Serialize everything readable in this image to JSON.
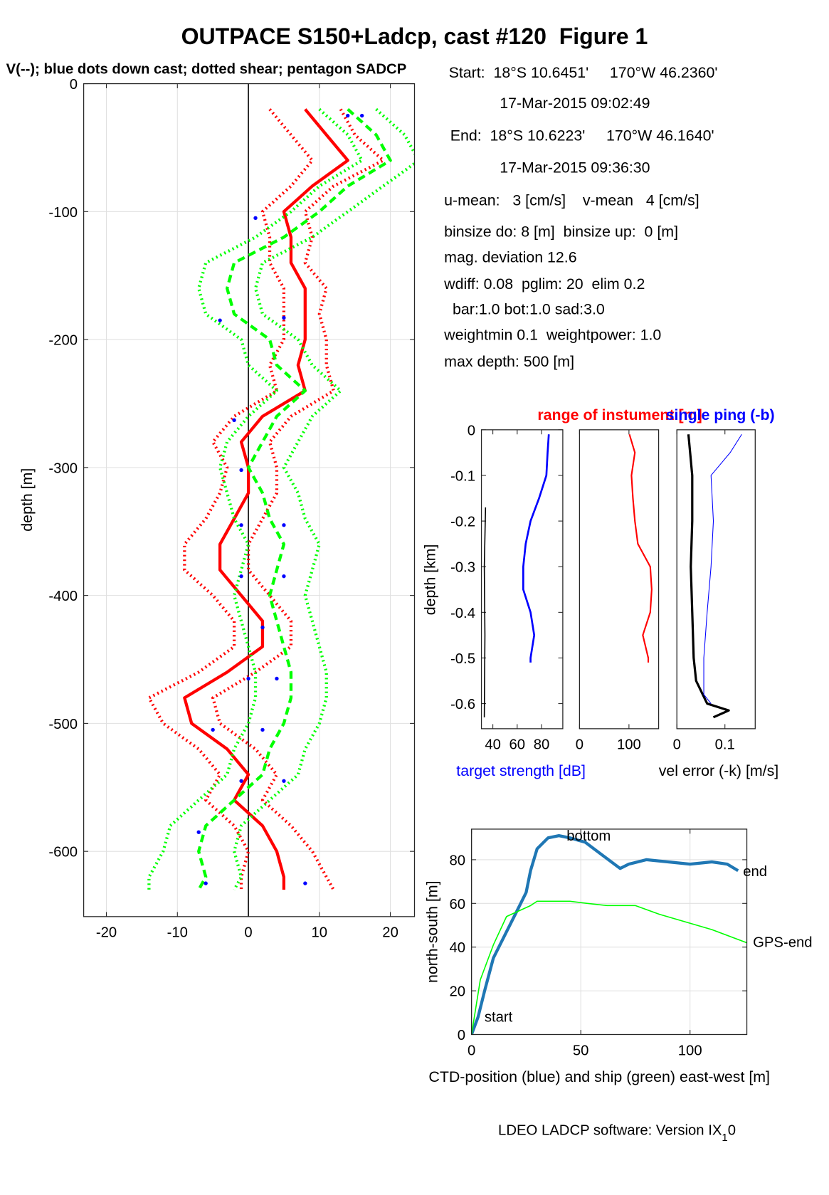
{
  "title": "OUTPACE S150+Ladcp, cast #120  Figure 1",
  "subtitle": "V(--); blue dots down cast; dotted shear; pentagon SADCP",
  "info": [
    "Start:  18°S 10.6451'     170°W 46.2360'",
    "17-Mar-2015 09:02:49",
    "End:  18°S 10.6223'     170°W 46.1640'",
    "17-Mar-2015 09:36:30",
    "u-mean:   3 [cm/s]    v-mean   4 [cm/s]",
    "binsize do: 8 [m]  binsize up:  0 [m]",
    "mag. deviation 12.6",
    "wdiff: 0.08  pglim: 20  elim 0.2",
    "  bar:1.0 bot:1.0 sad:3.0",
    "weightmin 0.1  weightpower: 1.0",
    "max depth: 500 [m]"
  ],
  "footer": {
    "text": "LDEO LADCP software: Version IX",
    "subscript": "1",
    "suffix": "0"
  },
  "chart_data": [
    {
      "type": "profile",
      "ylabel": "depth [m]",
      "xlim": [
        -23.2,
        23.4
      ],
      "ylim": [
        -651,
        0
      ],
      "xticks": [
        -20,
        -10,
        0,
        10,
        20
      ],
      "yticks": [
        -600,
        -500,
        -400,
        -300,
        -200,
        -100,
        0
      ],
      "grid": true,
      "y": [
        -20,
        -40,
        -60,
        -80,
        -100,
        -120,
        -140,
        -160,
        -180,
        -200,
        -220,
        -240,
        -260,
        -280,
        -300,
        -320,
        -340,
        -360,
        -380,
        -400,
        -420,
        -440,
        -460,
        -480,
        -500,
        -520,
        -540,
        -560,
        -580,
        -600,
        -620,
        -630
      ],
      "series": [
        {
          "color": "#ff0000",
          "style": "solid",
          "width": 4,
          "values": [
            8,
            11,
            14,
            9,
            5,
            6,
            6,
            8,
            8,
            8,
            7,
            8,
            2,
            -1,
            0,
            0,
            -2,
            -4,
            -4,
            -1,
            2,
            2,
            -3,
            -9,
            -8,
            -3,
            0,
            -2,
            2,
            4,
            5,
            5
          ]
        },
        {
          "color": "#ff0000",
          "style": "dotted",
          "width": 4,
          "values": [
            13,
            15,
            19,
            12,
            8,
            9,
            8,
            11,
            10,
            11,
            11,
            12,
            6,
            3,
            4,
            4,
            2,
            0,
            0,
            3,
            6,
            6,
            1,
            -5,
            -4,
            1,
            4,
            2,
            6,
            9,
            11,
            12
          ]
        },
        {
          "color": "#ff0000",
          "style": "dotted",
          "width": 4,
          "values": [
            3,
            6,
            9,
            6,
            2,
            3,
            3,
            5,
            5,
            5,
            3,
            4,
            -2,
            -5,
            -3,
            -4,
            -6,
            -9,
            -9,
            -5,
            -2,
            -2,
            -7,
            -14,
            -12,
            -7,
            -4,
            -6,
            -2,
            0,
            -1,
            -1
          ]
        },
        {
          "color": "#00ff00",
          "style": "dashed",
          "width": 4,
          "values": [
            14,
            18,
            20,
            14,
            10,
            5,
            -2,
            -3,
            -2,
            3,
            4,
            8,
            4,
            2,
            0,
            2,
            3,
            5,
            4,
            3,
            4,
            5,
            6,
            6,
            5,
            3,
            2,
            -2,
            -6,
            -7,
            -6,
            -7
          ]
        },
        {
          "color": "#00ff00",
          "style": "dotted",
          "width": 4,
          "values": [
            18,
            22,
            24,
            19,
            14,
            9,
            2,
            1,
            2,
            7,
            9,
            13,
            9,
            7,
            5,
            7,
            8,
            10,
            9,
            8,
            9,
            10,
            11,
            11,
            10,
            8,
            7,
            3,
            -1,
            -2,
            -1,
            -2
          ]
        },
        {
          "color": "#00ff00",
          "style": "dotted",
          "width": 4,
          "values": [
            10,
            14,
            16,
            10,
            6,
            1,
            -6,
            -7,
            -6,
            -1,
            0,
            4,
            0,
            -3,
            -4,
            -3,
            -2,
            0,
            -1,
            -2,
            -1,
            0,
            1,
            1,
            0,
            -2,
            -3,
            -7,
            -11,
            -12,
            -14,
            -14
          ]
        },
        {
          "color": "#0000ff",
          "style": "dots",
          "width": 4,
          "y": [
            -25,
            -25,
            -105,
            -185,
            -183,
            -263,
            -302,
            -345,
            -345,
            -385,
            -385,
            -425,
            -465,
            -465,
            -505,
            -505,
            -545,
            -545,
            -585,
            -625,
            -625
          ],
          "values": [
            14,
            16,
            1,
            -4,
            5,
            -2,
            -1,
            -1,
            5,
            -1,
            5,
            2,
            0,
            4,
            -5,
            2,
            -1,
            5,
            -7,
            -6,
            8
          ]
        }
      ]
    },
    {
      "type": "profile",
      "ylabel": "depth [km]",
      "xlabel": "target strength [dB]",
      "xlabel_color": "#0000ff",
      "xlim": [
        30.6,
        97.5
      ],
      "ylim": [
        -0.655,
        0
      ],
      "xticks": [
        40,
        60,
        80
      ],
      "yticks": [
        -0.6,
        -0.5,
        -0.4,
        -0.3,
        -0.2,
        -0.1,
        0
      ],
      "grid": false,
      "series": [
        {
          "color": "#0000ff",
          "style": "solid",
          "width": 2.5,
          "y": [
            -0.01,
            -0.05,
            -0.1,
            -0.15,
            -0.2,
            -0.25,
            -0.3,
            -0.35,
            -0.4,
            -0.45,
            -0.5,
            -0.51
          ],
          "values": [
            86,
            85,
            84,
            78,
            71,
            67,
            65,
            65,
            71,
            74,
            71,
            71
          ]
        },
        {
          "color": "#000000",
          "style": "solid",
          "width": 1.5,
          "y": [
            -0.17,
            -0.3,
            -0.45,
            -0.63
          ],
          "values": [
            34,
            33,
            33.5,
            33
          ]
        }
      ]
    },
    {
      "type": "profile",
      "title": "range of instument [m]",
      "title_color": "#ff0000",
      "xlim": [
        0,
        160
      ],
      "ylim": [
        -0.655,
        0
      ],
      "xticks": [
        0,
        100
      ],
      "grid": false,
      "series": [
        {
          "color": "#ff0000",
          "style": "solid",
          "width": 2,
          "y": [
            -0.01,
            -0.05,
            -0.1,
            -0.15,
            -0.2,
            -0.25,
            -0.3,
            -0.35,
            -0.4,
            -0.45,
            -0.5,
            -0.51
          ],
          "values": [
            101,
            112,
            105,
            108,
            112,
            118,
            143,
            146,
            143,
            128,
            139,
            139
          ]
        }
      ]
    },
    {
      "type": "profile",
      "title": "single ping (-b)",
      "title_color": "#0000ff",
      "xlabel": "vel error (-k) [m/s]",
      "xlim": [
        0,
        0.163
      ],
      "ylim": [
        -0.655,
        0
      ],
      "xticks": [
        0,
        0.1
      ],
      "grid": false,
      "series": [
        {
          "color": "#000000",
          "style": "solid",
          "width": 3,
          "y": [
            -0.01,
            -0.1,
            -0.2,
            -0.3,
            -0.4,
            -0.5,
            -0.55,
            -0.6,
            -0.615,
            -0.63
          ],
          "values": [
            0.024,
            0.032,
            0.032,
            0.029,
            0.032,
            0.035,
            0.04,
            0.063,
            0.108,
            0.076
          ]
        },
        {
          "color": "#0000ff",
          "style": "solid",
          "width": 1,
          "y": [
            -0.01,
            -0.05,
            -0.1,
            -0.2,
            -0.3,
            -0.4,
            -0.5,
            -0.58,
            -0.6
          ],
          "values": [
            0.135,
            0.111,
            0.071,
            0.076,
            0.071,
            0.063,
            0.056,
            0.056,
            0.071
          ]
        }
      ]
    },
    {
      "type": "line",
      "xlabel": "CTD-position (blue) and ship (green) east-west [m]",
      "ylabel": "north-south [m]",
      "xlim": [
        0,
        126
      ],
      "ylim": [
        0,
        94
      ],
      "xticks": [
        0,
        50,
        100
      ],
      "yticks": [
        0,
        20,
        40,
        60,
        80
      ],
      "grid": true,
      "annotations": [
        "start",
        "bottom",
        "end",
        "GPS-end"
      ],
      "series": [
        {
          "color": "#1f77b4",
          "width": 4,
          "x": [
            0,
            3,
            6,
            10,
            15,
            20,
            25,
            27,
            30,
            35,
            40,
            45,
            52,
            60,
            68,
            72,
            80,
            90,
            100,
            110,
            117,
            122
          ],
          "y": [
            0,
            8,
            20,
            35,
            45,
            55,
            65,
            75,
            85,
            90,
            91,
            90,
            88,
            82,
            76,
            78,
            80,
            79,
            78,
            79,
            78,
            75
          ]
        },
        {
          "color": "#00ff00",
          "width": 1.5,
          "x": [
            0,
            4,
            10,
            16,
            27,
            30,
            45,
            53,
            62,
            75,
            86,
            110,
            126
          ],
          "y": [
            0,
            25,
            41,
            54,
            59,
            61,
            61,
            60,
            59,
            59,
            55,
            48,
            42
          ]
        }
      ]
    }
  ]
}
